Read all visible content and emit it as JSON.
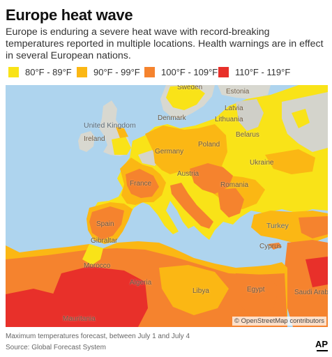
{
  "header": {
    "title": "Europe heat wave",
    "subtitle": "Europe is enduring a severe heat wave with record-breaking temperatures reported in multiple locations. Health warnings are in effect in several European nations."
  },
  "legend": [
    {
      "label": "80°F - 89°F",
      "color": "#f9e318"
    },
    {
      "label": "90°F - 99°F",
      "color": "#fbb714"
    },
    {
      "label": "100°F - 109°F",
      "color": "#f5832e"
    },
    {
      "label": "110°F - 119°F",
      "color": "#e8302a"
    }
  ],
  "map": {
    "places": {
      "sweden": "Sweden",
      "estonia": "Estonia",
      "latvia": "Latvia",
      "lithuania": "Lithuania",
      "denmark": "Denmark",
      "united_kingdom": "United Kingdom",
      "ireland": "Ireland",
      "belarus": "Belarus",
      "poland": "Poland",
      "germany": "Germany",
      "ukraine": "Ukraine",
      "austria": "Austria",
      "france": "France",
      "romania": "Romania",
      "spain": "Spain",
      "turkey": "Turkey",
      "gibraltar": "Gibraltar",
      "cyprus": "Cyprus",
      "morocco": "Morocco",
      "algeria": "Algeria",
      "libya": "Libya",
      "egypt": "Egypt",
      "saudi_arabia": "Saudi Arabia",
      "mauritania": "Mauritania"
    },
    "attribution": "© OpenStreetMap contributors"
  },
  "footer": {
    "caption": "Maximum temperatures forecast, between July 1 and July 4",
    "source": "Source: Global Forecast System",
    "logo": "AP"
  }
}
